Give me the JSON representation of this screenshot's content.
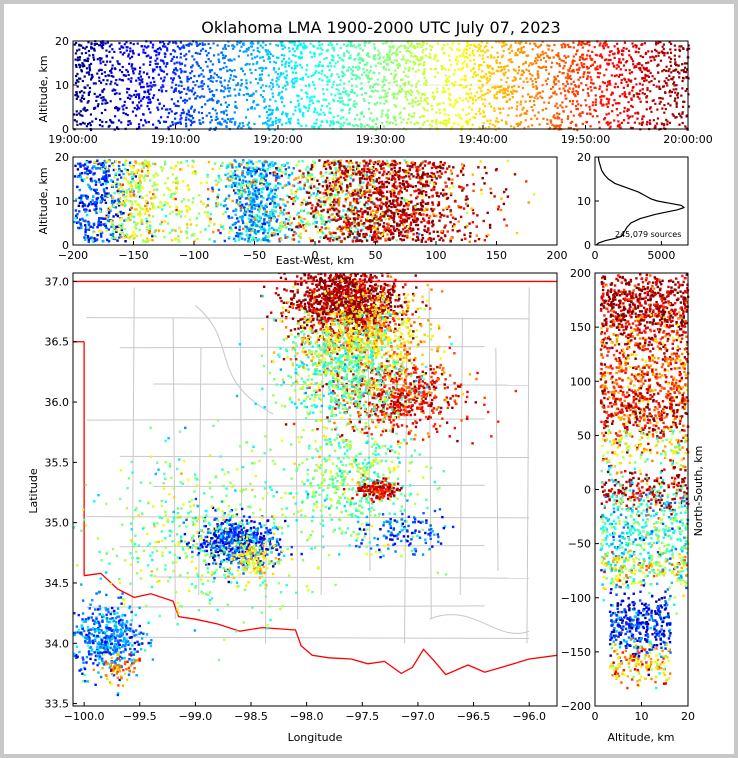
{
  "chart_data": [
    {
      "type": "scatter",
      "panel": "altitude-time",
      "title": "Oklahoma LMA 1900-2000 UTC July 07, 2023",
      "ylabel": "Altitude, km",
      "xlim": [
        "19:00:00",
        "20:00:00"
      ],
      "ylim": [
        0,
        20
      ],
      "x_ticks": [
        "19:00:00",
        "19:10:00",
        "19:20:00",
        "19:30:00",
        "19:40:00",
        "19:50:00",
        "20:00:00"
      ],
      "y_ticks": [
        "0",
        "10",
        "20"
      ],
      "colormap": "jet, color = time"
    },
    {
      "type": "scatter",
      "panel": "altitude-east-west",
      "xlabel": "East-West, km",
      "ylabel": "Altitude, km",
      "xlim": [
        -200,
        200
      ],
      "ylim": [
        0,
        20
      ],
      "x_ticks": [
        "−200",
        "−150",
        "−100",
        "−50",
        "0",
        "50",
        "100",
        "150",
        "200"
      ],
      "y_ticks": [
        "0",
        "10",
        "20"
      ]
    },
    {
      "type": "line",
      "panel": "altitude-histogram",
      "annotation": "245,079 sources",
      "xlim": [
        0,
        7000
      ],
      "ylim": [
        0,
        20
      ],
      "x_ticks": [
        "0",
        "5000"
      ],
      "y_ticks": [
        "0",
        "10",
        "20"
      ],
      "series": [
        {
          "color": "#000000",
          "altitude_km": [
            0,
            0.5,
            1,
            1.5,
            2,
            2.5,
            3,
            4,
            5,
            6,
            7,
            8,
            8.5,
            9,
            9.5,
            10,
            10.5,
            11,
            12,
            13,
            14,
            15,
            16,
            17,
            18,
            19,
            20
          ],
          "counts": [
            100,
            300,
            800,
            1500,
            2000,
            2100,
            2200,
            2400,
            2700,
            3400,
            4600,
            6200,
            6700,
            6500,
            5600,
            4700,
            4200,
            3900,
            3300,
            2400,
            1500,
            1000,
            700,
            500,
            400,
            300,
            250
          ]
        }
      ]
    },
    {
      "type": "scatter",
      "panel": "plan-view",
      "xlabel": "Longitude",
      "ylabel": "Latitude",
      "xlim": [
        -100.1,
        -95.75
      ],
      "ylim": [
        33.48,
        37.07
      ],
      "x_ticks": [
        "−100.0",
        "−99.5",
        "−99.0",
        "−98.5",
        "−98.0",
        "−97.5",
        "−97.0",
        "−96.5",
        "−96.0"
      ],
      "y_ticks": [
        "33.5",
        "34.0",
        "34.5",
        "35.0",
        "35.5",
        "36.0",
        "36.5",
        "37.0"
      ],
      "clusters": [
        {
          "lon": -97.65,
          "lat": 36.85,
          "spread": [
            0.25,
            0.15
          ],
          "time_min": 58,
          "n": 1200
        },
        {
          "lon": -97.5,
          "lat": 36.55,
          "spread": [
            0.3,
            0.18
          ],
          "time_min": 40,
          "n": 700
        },
        {
          "lon": -97.2,
          "lat": 36.05,
          "spread": [
            0.3,
            0.15
          ],
          "time_min": 52,
          "n": 600
        },
        {
          "lon": -97.7,
          "lat": 36.25,
          "spread": [
            0.3,
            0.2
          ],
          "time_min": 28,
          "n": 600
        },
        {
          "lon": -97.6,
          "lat": 35.35,
          "spread": [
            0.3,
            0.25
          ],
          "time_min": 30,
          "n": 500
        },
        {
          "lon": -97.38,
          "lat": 35.28,
          "spread": [
            0.1,
            0.04
          ],
          "time_min": 55,
          "n": 150
        },
        {
          "lon": -98.65,
          "lat": 34.85,
          "spread": [
            0.18,
            0.1
          ],
          "time_min": 10,
          "n": 500
        },
        {
          "lon": -98.5,
          "lat": 34.7,
          "spread": [
            0.1,
            0.08
          ],
          "time_min": 38,
          "n": 120
        },
        {
          "lon": -99.8,
          "lat": 34.05,
          "spread": [
            0.15,
            0.15
          ],
          "time_min": 15,
          "n": 450
        },
        {
          "lon": -99.7,
          "lat": 33.8,
          "spread": [
            0.08,
            0.06
          ],
          "time_min": 45,
          "n": 60
        },
        {
          "lon": -98.9,
          "lat": 34.9,
          "spread": [
            0.5,
            0.35
          ],
          "time_min": 30,
          "n": 500
        },
        {
          "lon": -97.1,
          "lat": 34.9,
          "spread": [
            0.2,
            0.1
          ],
          "time_min": 12,
          "n": 120
        }
      ]
    },
    {
      "type": "scatter",
      "panel": "north-south-altitude",
      "xlabel": "Altitude, km",
      "ylabel": "North-South, km",
      "xlim": [
        0,
        20
      ],
      "ylim": [
        -200,
        200
      ],
      "x_ticks": [
        "0",
        "10",
        "20"
      ],
      "y_ticks": [
        "−200",
        "−150",
        "−100",
        "−50",
        "0",
        "50",
        "100",
        "150",
        "200"
      ]
    }
  ],
  "map_colors": {
    "state_border": "#ff0000",
    "county_lines": "#c8c8c8"
  }
}
